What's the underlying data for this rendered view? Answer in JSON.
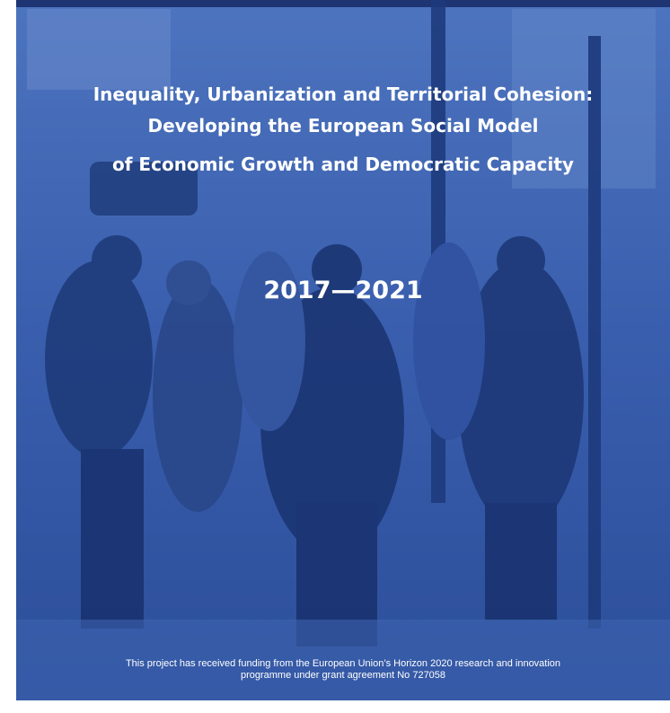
{
  "cover": {
    "title_lines": [
      "Inequality, Urbanization and Territorial Cohesion:",
      "Developing the European Social Model",
      "of Economic Growth and Democratic Capacity"
    ],
    "years": "2017—2021",
    "funding_lines": [
      "This project has received funding from the European Union’s Horizon 2020 research and innovation",
      "programme under grant agreement No 727058"
    ]
  }
}
